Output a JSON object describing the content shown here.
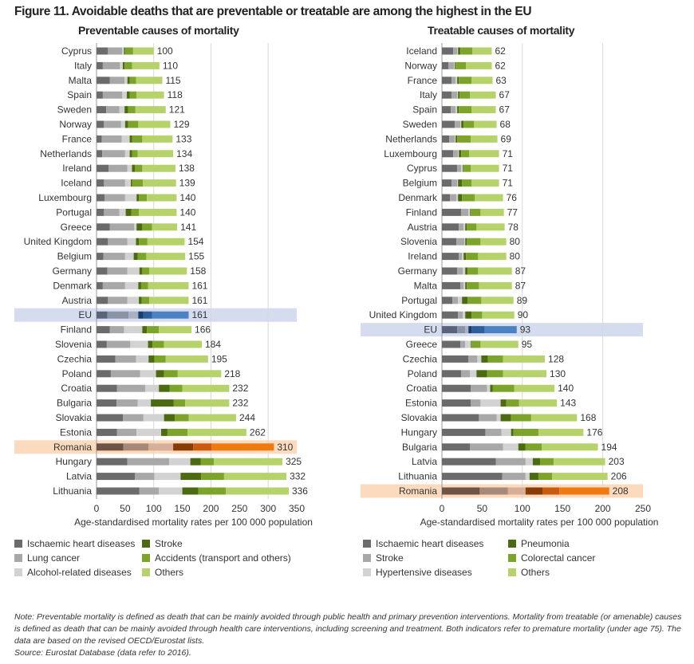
{
  "title": "Figure 11. Avoidable deaths that are preventable or treatable are among the highest in the EU",
  "note": "Note: Preventable mortality is defined as death that can be mainly avoided through public health and primary prevention interventions. Mortality from treatable (or amenable) causes is defined as death that can be mainly avoided through health care interventions, including screening and treatment. Both indicators refer to premature mortality (under age 75). The data are based on the revised OECD/Eurostat lists.",
  "source": "Source: Eurostat Database (data refer to 2016).",
  "colors": {
    "default": [
      "#6b6b6b",
      "#a8a8a8",
      "#d2d2d2",
      "#4b6a12",
      "#7da42a",
      "#b6d36b"
    ],
    "EU": [
      "#59647a",
      "#8a93a6",
      "#aab2c2",
      "#173d6e",
      "#2c5e9c",
      "#4c82c4"
    ],
    "Romania": [
      "#6e5447",
      "#a7897a",
      "#d7ae97",
      "#873b05",
      "#c95b10",
      "#f07a12"
    ],
    "highlight_EU": "#d5dcef",
    "highlight_Romania": "#fbdabd",
    "grid": "#d8d8d8"
  },
  "chart_data": [
    {
      "type": "bar",
      "orientation": "horizontal",
      "stacked": true,
      "title": "Preventable causes of mortality",
      "xlabel": "Age-standardised mortality rates per 100 000 population",
      "xlim": [
        0,
        350
      ],
      "xticks": [
        0,
        50,
        100,
        150,
        200,
        250,
        300,
        350
      ],
      "grid": true,
      "highlighted": [
        "EU",
        "Romania"
      ],
      "categories": [
        "Cyprus",
        "Italy",
        "Malta",
        "Spain",
        "Sweden",
        "Norway",
        "France",
        "Netherlands",
        "Ireland",
        "Iceland",
        "Luxembourg",
        "Portugal",
        "Greece",
        "United Kingdom",
        "Belgium",
        "Germany",
        "Denmark",
        "Austria",
        "EU",
        "Finland",
        "Slovenia",
        "Czechia",
        "Poland",
        "Croatia",
        "Bulgaria",
        "Slovakia",
        "Estonia",
        "Romania",
        "Hungary",
        "Latvia",
        "Lithuania"
      ],
      "totals": [
        100,
        110,
        115,
        118,
        121,
        129,
        133,
        134,
        138,
        139,
        140,
        140,
        141,
        154,
        155,
        158,
        161,
        161,
        161,
        166,
        184,
        195,
        218,
        232,
        232,
        244,
        262,
        310,
        325,
        332,
        336
      ],
      "series": [
        {
          "name": "Ischaemic heart diseases",
          "values": [
            20,
            11,
            23,
            11,
            17,
            13,
            9,
            10,
            21,
            13,
            14,
            13,
            23,
            20,
            12,
            19,
            11,
            20,
            19,
            23,
            18,
            33,
            25,
            36,
            35,
            46,
            36,
            47,
            54,
            67,
            75
          ]
        },
        {
          "name": "Lung cancer",
          "values": [
            25,
            30,
            26,
            34,
            23,
            30,
            35,
            40,
            33,
            37,
            36,
            27,
            43,
            34,
            38,
            35,
            39,
            34,
            37,
            25,
            41,
            36,
            51,
            49,
            37,
            36,
            34,
            44,
            73,
            34,
            34
          ]
        },
        {
          "name": "Alcohol-related diseases",
          "values": [
            3,
            5,
            5,
            8,
            9,
            7,
            14,
            8,
            8,
            10,
            20,
            11,
            4,
            15,
            15,
            21,
            23,
            20,
            17,
            32,
            31,
            22,
            28,
            24,
            23,
            36,
            43,
            43,
            37,
            46,
            41
          ]
        },
        {
          "name": "Stroke",
          "values": [
            2,
            3,
            4,
            5,
            6,
            5,
            4,
            4,
            5,
            2,
            4,
            10,
            10,
            5,
            7,
            5,
            5,
            5,
            9,
            8,
            8,
            10,
            14,
            19,
            40,
            19,
            11,
            35,
            18,
            36,
            28
          ]
        },
        {
          "name": "Accidents (transport and others)",
          "values": [
            14,
            13,
            11,
            12,
            13,
            18,
            18,
            10,
            13,
            19,
            14,
            13,
            17,
            15,
            15,
            12,
            12,
            13,
            15,
            21,
            20,
            20,
            24,
            22,
            20,
            24,
            35,
            32,
            23,
            40,
            48
          ]
        },
        {
          "name": "Others",
          "values": [
            36,
            48,
            46,
            48,
            53,
            56,
            53,
            62,
            58,
            58,
            52,
            66,
            44,
            65,
            68,
            66,
            71,
            69,
            64,
            57,
            66,
            74,
            76,
            82,
            77,
            83,
            103,
            109,
            120,
            109,
            110
          ]
        }
      ]
    },
    {
      "type": "bar",
      "orientation": "horizontal",
      "stacked": true,
      "title": "Treatable causes of mortality",
      "xlabel": "Age-standardised mortality rates per 100 000 population",
      "xlim": [
        0,
        250
      ],
      "xticks": [
        0,
        50,
        100,
        150,
        200,
        250
      ],
      "grid": true,
      "highlighted": [
        "EU",
        "Romania"
      ],
      "categories": [
        "Iceland",
        "Norway",
        "France",
        "Italy",
        "Spain",
        "Sweden",
        "Netherlands",
        "Luxembourg",
        "Cyprus",
        "Belgium",
        "Denmark",
        "Finland",
        "Austria",
        "Slovenia",
        "Ireland",
        "Germany",
        "Malta",
        "Portugal",
        "United Kingdom",
        "EU",
        "Greece",
        "Czechia",
        "Poland",
        "Croatia",
        "Estonia",
        "Slovakia",
        "Hungary",
        "Bulgaria",
        "Latvia",
        "Lithuania",
        "Romania"
      ],
      "totals": [
        62,
        62,
        63,
        67,
        67,
        68,
        69,
        71,
        71,
        71,
        76,
        77,
        78,
        80,
        80,
        87,
        87,
        89,
        90,
        93,
        95,
        128,
        130,
        140,
        143,
        168,
        176,
        194,
        203,
        206,
        208
      ],
      "series": [
        {
          "name": "Ischaemic heart diseases",
          "values": [
            14,
            8,
            12,
            12,
            11,
            16,
            9,
            14,
            19,
            12,
            10,
            24,
            21,
            18,
            21,
            19,
            23,
            13,
            20,
            19,
            23,
            33,
            24,
            36,
            36,
            46,
            54,
            35,
            67,
            75,
            47
          ]
        },
        {
          "name": "Stroke",
          "values": [
            5,
            7,
            5,
            7,
            6,
            7,
            7,
            6,
            5,
            7,
            8,
            9,
            6,
            10,
            4,
            7,
            4,
            7,
            6,
            10,
            6,
            11,
            11,
            20,
            12,
            22,
            20,
            41,
            37,
            29,
            35
          ]
        },
        {
          "name": "Hypertensive diseases",
          "values": [
            1,
            1,
            2,
            1,
            2,
            1,
            1,
            1,
            2,
            1,
            2,
            2,
            2,
            1,
            2,
            3,
            2,
            5,
            3,
            4,
            7,
            5,
            8,
            4,
            25,
            5,
            12,
            19,
            9,
            5,
            22
          ]
        },
        {
          "name": "Pneumonia",
          "values": [
            3,
            1,
            2,
            2,
            2,
            3,
            2,
            3,
            1,
            5,
            5,
            1,
            2,
            2,
            3,
            3,
            2,
            7,
            8,
            4,
            1,
            8,
            13,
            3,
            7,
            13,
            3,
            9,
            9,
            11,
            21
          ]
        },
        {
          "name": "Colorectal cancer",
          "values": [
            15,
            13,
            16,
            13,
            16,
            13,
            17,
            10,
            9,
            12,
            16,
            12,
            12,
            17,
            15,
            13,
            15,
            17,
            13,
            16,
            11,
            19,
            20,
            27,
            16,
            25,
            31,
            20,
            17,
            17,
            21
          ]
        },
        {
          "name": "Others",
          "values": [
            24,
            32,
            26,
            32,
            30,
            28,
            33,
            37,
            35,
            34,
            35,
            29,
            35,
            32,
            35,
            42,
            41,
            40,
            40,
            40,
            47,
            52,
            54,
            50,
            47,
            57,
            56,
            70,
            64,
            69,
            62
          ]
        }
      ]
    }
  ]
}
